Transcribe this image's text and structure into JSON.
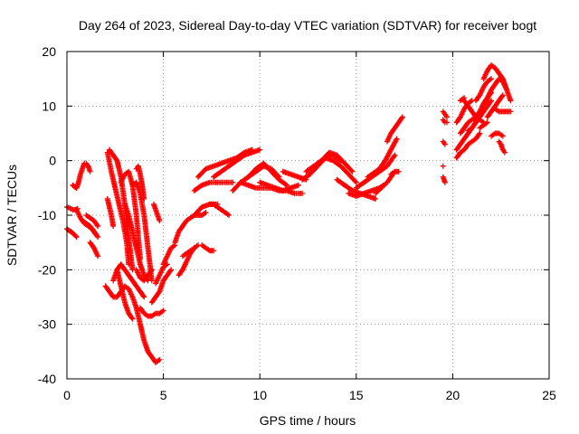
{
  "chart_data": {
    "type": "scatter",
    "title": "Day 264 of 2023, Sidereal Day-to-day VTEC variation (SDTVAR) for receiver bogt",
    "xlabel": "GPS time / hours",
    "ylabel": "SDTVAR / TECUs",
    "xlim": [
      0,
      25
    ],
    "ylim": [
      -40,
      20
    ],
    "xticks": [
      0,
      5,
      10,
      15,
      20,
      25
    ],
    "yticks": [
      -40,
      -30,
      -20,
      -10,
      0,
      10,
      20
    ],
    "grid": true,
    "marker": "+",
    "color": "#ff0000",
    "series": [
      {
        "x": [
          0.0,
          0.1,
          0.2,
          0.3,
          0.4,
          0.5
        ],
        "y": [
          -12.5,
          -12.8,
          -13.0,
          -13.3,
          -13.6,
          -14.0
        ]
      },
      {
        "x": [
          0.0,
          0.15,
          0.3,
          0.45,
          0.55
        ],
        "y": [
          -8.5,
          -8.7,
          -9.0,
          -9.0,
          -8.8
        ]
      },
      {
        "x": [
          0.3,
          0.4,
          0.5
        ],
        "y": [
          -4.5,
          -4.8,
          -5.0
        ]
      },
      {
        "x": [
          0.5,
          0.6,
          0.7,
          0.8,
          0.9,
          1.0,
          1.1,
          1.2
        ],
        "y": [
          -5.0,
          -4.0,
          -2.5,
          -1.5,
          -0.5,
          -0.5,
          -1.0,
          -2.0
        ]
      },
      {
        "x": [
          0.5,
          0.7,
          0.9,
          1.1,
          1.3,
          1.5
        ],
        "y": [
          -9.0,
          -10.5,
          -11.5,
          -12.0,
          -12.5,
          -13.5
        ]
      },
      {
        "x": [
          0.8,
          1.0,
          1.2,
          1.4,
          1.6
        ],
        "y": [
          -11.0,
          -11.5,
          -12.0,
          -13.0,
          -14.0
        ]
      },
      {
        "x": [
          1.2,
          1.4,
          1.6
        ],
        "y": [
          -15.0,
          -16.0,
          -17.5
        ]
      },
      {
        "x": [
          1.0,
          1.2,
          1.4,
          1.6
        ],
        "y": [
          -10.0,
          -10.5,
          -11.0,
          -12.0
        ]
      },
      {
        "x": [
          2.0,
          2.2,
          2.4,
          2.6,
          2.8,
          3.0,
          3.2,
          3.4,
          3.6,
          3.8,
          4.0,
          4.2,
          4.4,
          4.6,
          4.8
        ],
        "y": [
          -23.0,
          -24.0,
          -25.0,
          -25.0,
          -24.0,
          -23.0,
          -23.5,
          -25.0,
          -27.0,
          -30.0,
          -33.0,
          -35.0,
          -36.0,
          -37.0,
          -36.5
        ]
      },
      {
        "x": [
          2.1,
          2.3,
          2.5,
          2.7,
          2.9,
          3.1,
          3.2
        ],
        "y": [
          1.5,
          -2.0,
          -5.0,
          -8.0,
          -11.0,
          -15.0,
          -19.0
        ]
      },
      {
        "x": [
          2.2,
          2.4,
          2.6,
          2.8,
          3.0,
          3.2,
          3.4
        ],
        "y": [
          2.0,
          1.0,
          0.0,
          -3.0,
          -8.0,
          -14.0,
          -20.0
        ]
      },
      {
        "x": [
          2.1,
          2.2,
          2.3,
          2.4
        ],
        "y": [
          -7.0,
          -8.5,
          -10.0,
          -12.0
        ]
      },
      {
        "x": [
          2.4,
          2.6,
          2.8,
          3.0,
          3.2,
          3.4,
          3.6,
          3.8,
          4.0
        ],
        "y": [
          -22.0,
          -20.0,
          -19.0,
          -20.0,
          -21.0,
          -22.0,
          -23.0,
          -24.0,
          -25.0
        ]
      },
      {
        "x": [
          2.6,
          2.8,
          3.0,
          3.2,
          3.4
        ],
        "y": [
          -20.0,
          -23.0,
          -26.0,
          -28.0,
          -29.0
        ]
      },
      {
        "x": [
          2.8,
          3.0,
          3.2,
          3.4,
          3.6,
          3.8
        ],
        "y": [
          -4.0,
          -2.5,
          -2.0,
          -4.5,
          -10.0,
          -18.0
        ]
      },
      {
        "x": [
          3.0,
          3.2,
          3.4,
          3.6,
          3.8,
          4.0,
          4.2
        ],
        "y": [
          -8.0,
          -10.0,
          -13.0,
          -16.0,
          -19.0,
          -21.0,
          -22.0
        ]
      },
      {
        "x": [
          3.4,
          3.6,
          3.8,
          4.0,
          4.2,
          4.4
        ],
        "y": [
          -4.5,
          -4.0,
          -6.0,
          -10.0,
          -16.0,
          -22.0
        ]
      },
      {
        "x": [
          3.6,
          3.7,
          3.8,
          3.9,
          4.0
        ],
        "y": [
          -1.5,
          -1.0,
          -2.5,
          -4.5,
          -7.0
        ]
      },
      {
        "x": [
          3.8,
          4.0,
          4.2,
          4.4,
          4.6,
          4.8,
          5.0
        ],
        "y": [
          -27.0,
          -28.0,
          -28.5,
          -28.5,
          -28.0,
          -28.0,
          -27.5
        ]
      },
      {
        "x": [
          3.6,
          3.8,
          4.0,
          4.2,
          4.4
        ],
        "y": [
          -20.0,
          -21.5,
          -22.0,
          -21.0,
          -20.0
        ]
      },
      {
        "x": [
          4.4,
          4.6,
          4.8,
          5.0,
          5.2,
          5.4
        ],
        "y": [
          -26.0,
          -25.0,
          -24.0,
          -22.0,
          -21.0,
          -20.0
        ]
      },
      {
        "x": [
          4.6,
          4.8,
          5.0,
          5.2
        ],
        "y": [
          -22.5,
          -21.0,
          -19.5,
          -19.0
        ]
      },
      {
        "x": [
          4.5,
          4.6,
          4.7,
          4.8
        ],
        "y": [
          -8.0,
          -9.0,
          -10.0,
          -11.0
        ]
      },
      {
        "x": [
          5.0,
          5.2,
          5.4,
          5.6
        ],
        "y": [
          -19.0,
          -17.5,
          -16.0,
          -15.5
        ]
      },
      {
        "x": [
          5.8,
          6.0,
          6.2,
          6.4,
          6.6
        ],
        "y": [
          -21.0,
          -20.0,
          -18.5,
          -17.0,
          -16.0
        ]
      },
      {
        "x": [
          5.6,
          5.8,
          6.0,
          6.2,
          6.4,
          6.6,
          6.8,
          7.0,
          7.2
        ],
        "y": [
          -15.0,
          -13.0,
          -12.0,
          -11.0,
          -10.5,
          -10.0,
          -10.0,
          -10.0,
          -9.5
        ]
      },
      {
        "x": [
          6.0,
          6.2,
          6.4,
          6.6,
          6.8
        ],
        "y": [
          -17.5,
          -17.0,
          -16.5,
          -16.0,
          -15.5
        ]
      },
      {
        "x": [
          6.6,
          7.0,
          7.4,
          7.8
        ],
        "y": [
          -10.0,
          -8.5,
          -8.0,
          -8.0
        ]
      },
      {
        "x": [
          7.4,
          7.6,
          7.8,
          8.0,
          8.2,
          8.4
        ],
        "y": [
          -8.0,
          -8.0,
          -8.5,
          -9.0,
          -9.5,
          -10.0
        ]
      },
      {
        "x": [
          7.0,
          7.2,
          7.4,
          7.6
        ],
        "y": [
          -15.5,
          -16.0,
          -16.5,
          -16.5
        ]
      },
      {
        "x": [
          6.6,
          7.0,
          7.4,
          7.8,
          8.2,
          8.6
        ],
        "y": [
          -5.5,
          -4.5,
          -4.0,
          -4.0,
          -4.0,
          -4.0
        ]
      },
      {
        "x": [
          6.8,
          7.2,
          7.6,
          8.0,
          8.4,
          8.8,
          9.2,
          9.6
        ],
        "y": [
          -3.0,
          -1.5,
          -1.0,
          -0.5,
          0.0,
          0.5,
          1.5,
          2.0
        ]
      },
      {
        "x": [
          7.6,
          8.0,
          8.4,
          8.8,
          9.2,
          9.6,
          10.0
        ],
        "y": [
          -3.0,
          -2.0,
          -1.0,
          0.0,
          1.0,
          1.5,
          2.0
        ]
      },
      {
        "x": [
          8.6,
          9.0,
          9.4,
          9.8,
          10.2,
          10.6,
          11.0
        ],
        "y": [
          -5.5,
          -4.0,
          -3.0,
          -2.0,
          -1.0,
          -1.5,
          -3.0
        ]
      },
      {
        "x": [
          9.0,
          9.4,
          9.8,
          10.2,
          10.6,
          11.0,
          11.4,
          11.8,
          12.2
        ],
        "y": [
          -4.0,
          -4.5,
          -5.0,
          -5.0,
          -5.0,
          -5.5,
          -5.5,
          -6.0,
          -6.0
        ]
      },
      {
        "x": [
          9.4,
          9.8,
          10.2,
          10.6,
          11.0,
          11.4
        ],
        "y": [
          -3.0,
          -1.5,
          -0.5,
          -2.0,
          -3.5,
          -4.5
        ]
      },
      {
        "x": [
          10.0,
          10.4,
          10.8,
          11.2,
          11.6,
          12.0
        ],
        "y": [
          -4.0,
          -4.5,
          -5.0,
          -5.5,
          -5.0,
          -4.5
        ]
      },
      {
        "x": [
          11.2,
          11.6,
          12.0,
          12.4
        ],
        "y": [
          -2.0,
          -2.5,
          -3.0,
          -3.5
        ]
      },
      {
        "x": [
          12.2,
          12.6,
          13.0,
          13.4,
          13.8,
          14.2
        ],
        "y": [
          -3.5,
          -2.5,
          -1.0,
          0.5,
          1.0,
          0.0
        ]
      },
      {
        "x": [
          12.4,
          12.8,
          13.2,
          13.6,
          14.0,
          14.4,
          14.8
        ],
        "y": [
          -2.0,
          -1.0,
          0.0,
          1.5,
          1.0,
          -0.5,
          -2.0
        ]
      },
      {
        "x": [
          13.0,
          13.4,
          13.8,
          14.2,
          14.6,
          15.0
        ],
        "y": [
          -0.5,
          0.5,
          0.0,
          -1.0,
          -2.5,
          -4.0
        ]
      },
      {
        "x": [
          14.0,
          14.4,
          14.8,
          15.2,
          15.6,
          16.0
        ],
        "y": [
          -3.5,
          -4.5,
          -5.5,
          -6.0,
          -6.5,
          -7.0
        ]
      },
      {
        "x": [
          14.6,
          15.0,
          15.4,
          15.8,
          16.2,
          16.4
        ],
        "y": [
          -6.0,
          -6.5,
          -6.0,
          -5.5,
          -5.0,
          -4.5
        ]
      },
      {
        "x": [
          15.0,
          15.4,
          15.8,
          16.2,
          16.6,
          17.0
        ],
        "y": [
          -5.0,
          -4.0,
          -3.0,
          -2.0,
          -1.0,
          1.0
        ]
      },
      {
        "x": [
          15.6,
          15.8,
          16.0,
          16.2
        ],
        "y": [
          -3.0,
          -2.5,
          -2.0,
          -1.5
        ]
      },
      {
        "x": [
          16.0,
          16.3,
          16.6,
          16.9
        ],
        "y": [
          -6.0,
          -5.0,
          -4.0,
          -2.5
        ]
      },
      {
        "x": [
          16.2,
          16.5,
          16.8,
          17.1
        ],
        "y": [
          -1.5,
          0.0,
          2.0,
          4.0
        ]
      },
      {
        "x": [
          16.6,
          16.8,
          17.0,
          17.2,
          17.4
        ],
        "y": [
          3.5,
          5.0,
          6.0,
          7.0,
          8.0
        ]
      },
      {
        "x": [
          16.8,
          17.0,
          17.2
        ],
        "y": [
          -2.5,
          -2.0,
          -2.0
        ]
      },
      {
        "x": [
          19.5,
          19.6,
          19.7
        ],
        "y": [
          9.0,
          8.5,
          8.0
        ]
      },
      {
        "x": [
          19.5,
          19.6,
          19.7
        ],
        "y": [
          7.5,
          7.0,
          7.0
        ]
      },
      {
        "x": [
          19.5,
          19.6
        ],
        "y": [
          3.5,
          3.0
        ]
      },
      {
        "x": [
          19.5,
          19.6
        ],
        "y": [
          -3.0,
          -4.0
        ]
      },
      {
        "x": [
          19.5
        ],
        "y": [
          -1.0
        ]
      },
      {
        "x": [
          20.2,
          20.4,
          20.6,
          20.8,
          21.0,
          21.2,
          21.4,
          21.6,
          21.8,
          22.0,
          22.2,
          22.4,
          22.6,
          22.8
        ],
        "y": [
          2.0,
          3.0,
          4.0,
          5.0,
          6.0,
          7.0,
          8.5,
          10.0,
          11.5,
          13.0,
          14.0,
          15.0,
          14.5,
          13.0
        ]
      },
      {
        "x": [
          20.2,
          20.4,
          20.6,
          20.8,
          21.0,
          21.2,
          21.4
        ],
        "y": [
          0.5,
          1.5,
          2.0,
          3.0,
          3.5,
          4.0,
          5.0
        ]
      },
      {
        "x": [
          20.4,
          20.6,
          20.8,
          21.0,
          21.2,
          21.4,
          21.6,
          21.8,
          22.0
        ],
        "y": [
          5.0,
          6.0,
          7.0,
          7.5,
          8.0,
          9.0,
          10.5,
          11.5,
          12.5
        ]
      },
      {
        "x": [
          20.2,
          20.4,
          20.6,
          20.8,
          21.0
        ],
        "y": [
          7.0,
          8.0,
          9.5,
          10.5,
          11.0
        ]
      },
      {
        "x": [
          20.6,
          20.8,
          21.0,
          21.2,
          21.4,
          21.6
        ],
        "y": [
          11.0,
          10.0,
          9.0,
          8.0,
          7.5,
          7.0
        ]
      },
      {
        "x": [
          20.8,
          21.0,
          21.2,
          21.4,
          21.6,
          21.8,
          22.0
        ],
        "y": [
          5.5,
          6.0,
          7.0,
          8.0,
          9.0,
          10.0,
          11.0
        ]
      },
      {
        "x": [
          21.2,
          21.4,
          21.6,
          21.8,
          22.0
        ],
        "y": [
          11.0,
          12.0,
          13.5,
          14.5,
          15.0
        ]
      },
      {
        "x": [
          21.6,
          21.8,
          22.0,
          22.2,
          22.4,
          22.6,
          22.8,
          23.0
        ],
        "y": [
          15.0,
          16.5,
          17.5,
          17.0,
          16.0,
          15.0,
          13.0,
          11.0
        ]
      },
      {
        "x": [
          21.8,
          22.0,
          22.2,
          22.4,
          22.6
        ],
        "y": [
          8.0,
          9.0,
          10.0,
          11.0,
          12.0
        ]
      },
      {
        "x": [
          22.2,
          22.4,
          22.6,
          22.8,
          23.0
        ],
        "y": [
          9.5,
          9.0,
          9.0,
          9.0,
          9.0
        ]
      },
      {
        "x": [
          22.0,
          22.2,
          22.4,
          22.6
        ],
        "y": [
          4.5,
          5.0,
          5.0,
          4.5
        ]
      },
      {
        "x": [
          22.4,
          22.5,
          22.6,
          22.7
        ],
        "y": [
          3.5,
          3.0,
          2.0,
          1.5
        ]
      },
      {
        "x": [
          21.4,
          21.6,
          21.8
        ],
        "y": [
          6.0,
          6.5,
          7.0
        ]
      },
      {
        "x": [
          20.4,
          20.6
        ],
        "y": [
          11.0,
          11.5
        ]
      }
    ]
  }
}
